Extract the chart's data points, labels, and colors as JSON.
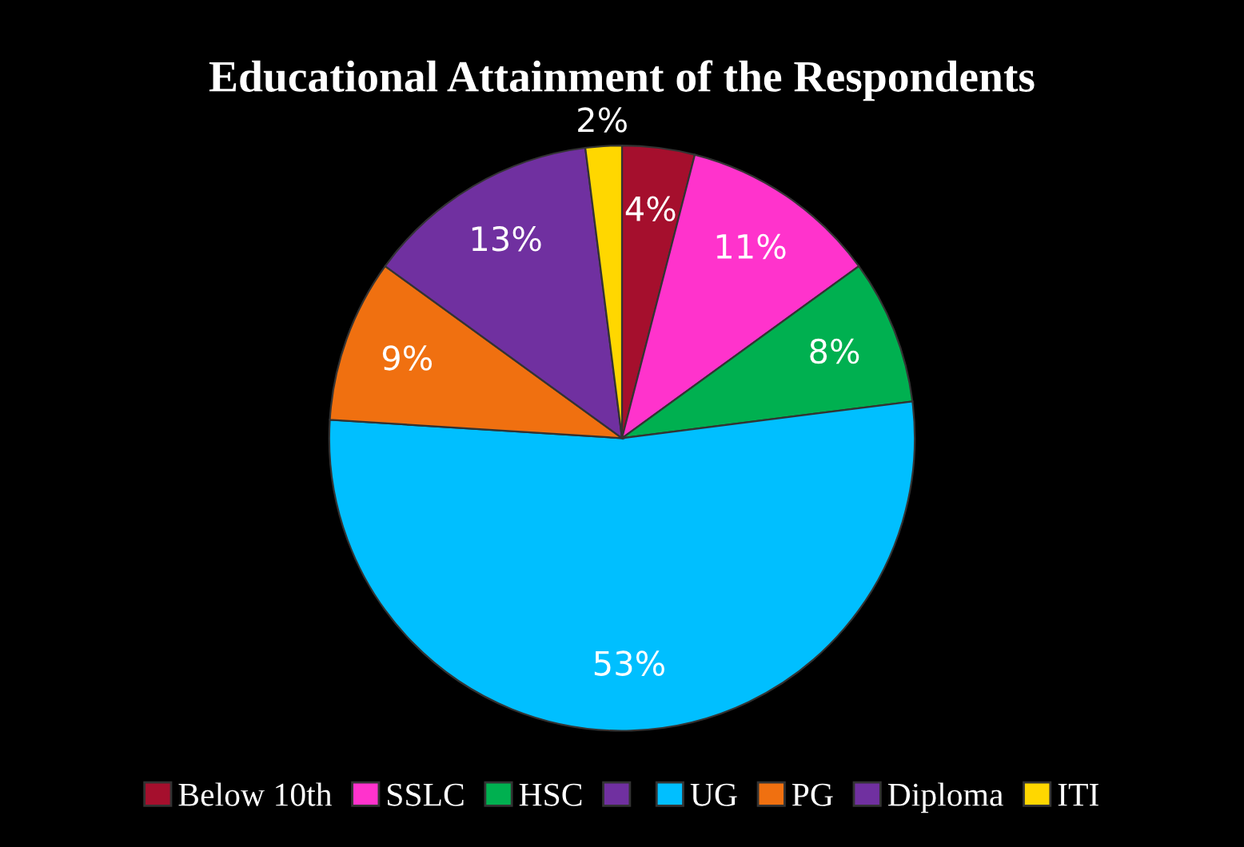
{
  "chart_data": {
    "type": "pie",
    "title": "Educational Attainment of the Respondents",
    "categories": [
      "Below 10th",
      "SSLC",
      "HSC",
      null,
      "UG",
      "PG",
      "Diploma",
      "ITI"
    ],
    "values": [
      4,
      11,
      8,
      0,
      53,
      9,
      13,
      2
    ],
    "value_labels": [
      "4%",
      "11%",
      "8%",
      null,
      "53%",
      "9%",
      "13%",
      "2%"
    ],
    "colors": [
      "#a50f2d",
      "#ff33cc",
      "#00b050",
      "#7030a0",
      "#00bfff",
      "#f07010",
      "#7030a0",
      "#ffd700"
    ],
    "legend": "bottom"
  }
}
